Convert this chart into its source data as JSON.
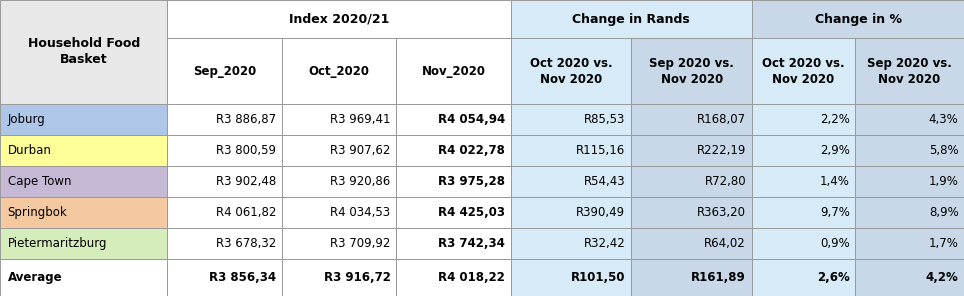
{
  "col_headers_row1": [
    "Sep_2020",
    "Oct_2020",
    "Nov_2020",
    "Oct 2020 vs.\nNov 2020",
    "Sep 2020 vs.\nNov 2020",
    "Oct 2020 vs.\nNov 2020",
    "Sep 2020 vs.\nNov 2020"
  ],
  "rows": [
    {
      "city": "Joburg",
      "city_color": "#aec6e8",
      "values": [
        "R3 886,87",
        "R3 969,41",
        "R4 054,94",
        "R85,53",
        "R168,07",
        "2,2%",
        "4,3%"
      ],
      "bold_nov": true
    },
    {
      "city": "Durban",
      "city_color": "#ffff99",
      "values": [
        "R3 800,59",
        "R3 907,62",
        "R4 022,78",
        "R115,16",
        "R222,19",
        "2,9%",
        "5,8%"
      ],
      "bold_nov": true
    },
    {
      "city": "Cape Town",
      "city_color": "#c5b9d6",
      "values": [
        "R3 902,48",
        "R3 920,86",
        "R3 975,28",
        "R54,43",
        "R72,80",
        "1,4%",
        "1,9%"
      ],
      "bold_nov": true
    },
    {
      "city": "Springbok",
      "city_color": "#f4c9a0",
      "values": [
        "R4 061,82",
        "R4 034,53",
        "R4 425,03",
        "R390,49",
        "R363,20",
        "9,7%",
        "8,9%"
      ],
      "bold_nov": true
    },
    {
      "city": "Pietermaritzburg",
      "city_color": "#d4edba",
      "values": [
        "R3 678,32",
        "R3 709,92",
        "R3 742,34",
        "R32,42",
        "R64,02",
        "0,9%",
        "1,7%"
      ],
      "bold_nov": true
    }
  ],
  "average": {
    "city": "Average",
    "values": [
      "R3 856,34",
      "R3 916,72",
      "R4 018,22",
      "R101,50",
      "R161,89",
      "2,6%",
      "4,2%"
    ]
  },
  "col_bg": [
    "#ffffff",
    "#ffffff",
    "#ffffff",
    "#ffffff",
    "#d6eaf8",
    "#c8d8e8",
    "#d6eaf8",
    "#c8d8e8"
  ],
  "header_city_bg": "#e8e8e8",
  "group_bg_index": "#ffffff",
  "group_bg_rands": "#d6eaf8",
  "group_bg_pct": "#c8d8e8",
  "border_color": "#999999",
  "fig_bg": "#ffffff"
}
